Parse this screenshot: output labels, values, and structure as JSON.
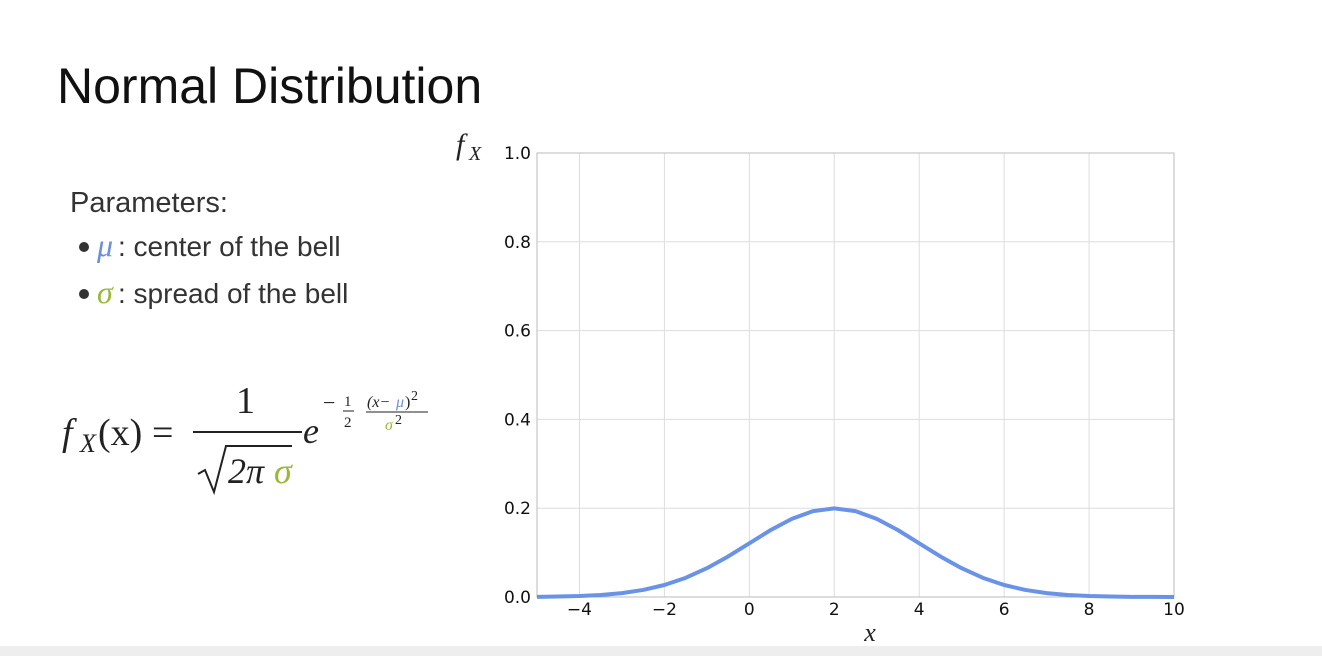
{
  "slide": {
    "title": "Normal Distribution",
    "params_heading": "Parameters:",
    "bullets": [
      {
        "symbol": "μ",
        "text": ": center of the bell",
        "color": "#6b8fdc"
      },
      {
        "symbol": "σ",
        "text": ": spread of the bell",
        "color": "#9ab83a"
      }
    ],
    "formula": {
      "f": "f",
      "f_sub": "X",
      "arg": "(x)",
      "eq": "=",
      "num": "1",
      "den": "2π",
      "den_sigma": "σ",
      "e": "e",
      "minus": "−",
      "half_num": "1",
      "half_den": "2",
      "exp_a": "(x−",
      "exp_mu": "μ",
      "exp_b": ")",
      "exp_pow": "2",
      "exp_sigma": "σ",
      "exp_sigma_pow": "2"
    }
  },
  "chart_data": {
    "type": "line",
    "ylabel": {
      "base": "f",
      "sub": "X"
    },
    "xlabel": "x",
    "x": [
      -5,
      -4.5,
      -4,
      -3.5,
      -3,
      -2.5,
      -2,
      -1.5,
      -1,
      -0.5,
      0,
      0.5,
      1,
      1.5,
      2,
      2.5,
      3,
      3.5,
      4,
      4.5,
      5,
      5.5,
      6,
      6.5,
      7,
      7.5,
      8,
      8.5,
      9,
      9.5,
      10
    ],
    "values": [
      0.0004,
      0.001,
      0.0022,
      0.0045,
      0.0088,
      0.0159,
      0.027,
      0.0431,
      0.0648,
      0.0913,
      0.121,
      0.1506,
      0.176,
      0.1933,
      0.1995,
      0.1933,
      0.176,
      0.1506,
      0.121,
      0.0913,
      0.0648,
      0.0431,
      0.027,
      0.0159,
      0.0088,
      0.0045,
      0.0022,
      0.001,
      0.0004,
      0.0002,
      0.0001
    ],
    "color": "#6a93e8",
    "xlim": [
      -5,
      10
    ],
    "xticks": [
      {
        "value": -4,
        "label": "−4"
      },
      {
        "value": -2,
        "label": "−2"
      },
      0,
      2,
      4,
      6,
      8,
      10
    ],
    "ylim": [
      0,
      1
    ],
    "yticks": [
      {
        "value": 0,
        "label": "0.0"
      },
      0.2,
      0.4,
      0.6,
      0.8,
      {
        "value": 1,
        "label": "1.0"
      }
    ],
    "grid": true
  }
}
